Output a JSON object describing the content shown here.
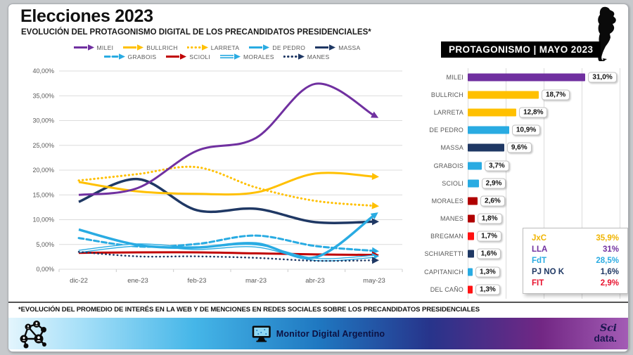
{
  "header": {
    "title": "Elecciones 2023",
    "subtitle": "EVOLUCIÓN DEL PROTAGONISMO DIGITAL DE LOS PRECANDIDATOS PRESIDENCIALES*"
  },
  "colors": {
    "purple": "#7030a0",
    "gold": "#ffc000",
    "lightblue": "#29abe2",
    "navy": "#1f3864",
    "dark_red": "#b00000",
    "red": "#c00000",
    "bright_red": "#ff1212",
    "crimson": "#e8112d",
    "grid": "#dcdcdc",
    "axis_text": "#595959"
  },
  "chart_data": [
    {
      "type": "line",
      "title": "",
      "x": [
        "dic-22",
        "ene-23",
        "feb-23",
        "mar-23",
        "abr-23",
        "may-23"
      ],
      "ylim": [
        0,
        40
      ],
      "ytick_step": 5,
      "ytick_labels": [
        "0,00%",
        "5,00%",
        "10,00%",
        "15,00%",
        "20,00%",
        "25,00%",
        "30,00%",
        "35,00%",
        "40,00%"
      ],
      "grid": true,
      "legend_position": "top",
      "series": [
        {
          "name": "MILEI",
          "color": "#7030a0",
          "style": "solid",
          "width": 3,
          "values": [
            15.0,
            16.4,
            23.9,
            26.5,
            37.4,
            31.0
          ]
        },
        {
          "name": "BULLRICH",
          "color": "#ffc000",
          "style": "solid",
          "width": 3,
          "values": [
            17.6,
            15.7,
            15.2,
            15.5,
            19.3,
            18.7
          ]
        },
        {
          "name": "LARRETA",
          "color": "#ffc000",
          "style": "dotted",
          "width": 3,
          "values": [
            17.9,
            19.2,
            20.6,
            16.5,
            13.8,
            12.8
          ]
        },
        {
          "name": "DE PEDRO",
          "color": "#29abe2",
          "style": "solid",
          "width": 3.5,
          "values": [
            8.0,
            4.9,
            4.4,
            5.2,
            2.4,
            10.9
          ]
        },
        {
          "name": "MASSA",
          "color": "#1f3864",
          "style": "solid",
          "width": 3.5,
          "values": [
            13.6,
            18.2,
            11.9,
            12.2,
            9.5,
            9.6
          ]
        },
        {
          "name": "GRABOIS",
          "color": "#29abe2",
          "style": "dashed",
          "width": 3,
          "values": [
            6.3,
            4.6,
            5.1,
            6.8,
            4.7,
            3.7
          ]
        },
        {
          "name": "SCIOLI",
          "color": "#c00000",
          "style": "solid",
          "width": 3,
          "values": [
            3.3,
            3.4,
            3.4,
            3.2,
            3.0,
            2.9
          ]
        },
        {
          "name": "MORALES",
          "color": "#29abe2",
          "style": "double",
          "width": 4,
          "values": [
            3.6,
            4.9,
            4.2,
            4.7,
            2.0,
            2.6
          ]
        },
        {
          "name": "MANES",
          "color": "#1f3864",
          "style": "dotted",
          "width": 2.5,
          "values": [
            3.5,
            2.6,
            2.6,
            2.3,
            1.7,
            1.8
          ]
        }
      ]
    },
    {
      "type": "bar",
      "title": "PROTAGONISMO | MAYO 2023",
      "xlim": [
        0,
        40
      ],
      "gridline_step": 10,
      "items": [
        {
          "label": "MILEI",
          "value": 31.0,
          "value_label": "31,0%",
          "color": "#7030a0"
        },
        {
          "label": "BULLRICH",
          "value": 18.7,
          "value_label": "18,7%",
          "color": "#ffc000"
        },
        {
          "label": "LARRETA",
          "value": 12.8,
          "value_label": "12,8%",
          "color": "#ffc000"
        },
        {
          "label": "DE PEDRO",
          "value": 10.9,
          "value_label": "10,9%",
          "color": "#29abe2"
        },
        {
          "label": "MASSA",
          "value": 9.6,
          "value_label": "9,6%",
          "color": "#1f3864"
        },
        {
          "label": "GRABOIS",
          "value": 3.7,
          "value_label": "3,7%",
          "color": "#29abe2"
        },
        {
          "label": "SCIOLI",
          "value": 2.9,
          "value_label": "2,9%",
          "color": "#29abe2"
        },
        {
          "label": "MORALES",
          "value": 2.6,
          "value_label": "2,6%",
          "color": "#b00000"
        },
        {
          "label": "MANES",
          "value": 1.8,
          "value_label": "1,8%",
          "color": "#b00000"
        },
        {
          "label": "BREGMAN",
          "value": 1.7,
          "value_label": "1,7%",
          "color": "#ff1212"
        },
        {
          "label": "SCHIARETTI",
          "value": 1.6,
          "value_label": "1,6%",
          "color": "#1f3864"
        },
        {
          "label": "CAPITANICH",
          "value": 1.3,
          "value_label": "1,3%",
          "color": "#29abe2"
        },
        {
          "label": "DEL CAÑO",
          "value": 1.3,
          "value_label": "1,3%",
          "color": "#ff1212"
        }
      ]
    }
  ],
  "panel": {
    "title": "PROTAGONISMO | MAYO 2023",
    "summary": [
      {
        "label": "JxC",
        "value": "35,9%",
        "color": "#f0b400"
      },
      {
        "label": "LLA",
        "value": "31%",
        "color": "#7030a0"
      },
      {
        "label": "FdT",
        "value": "28,5%",
        "color": "#29abe2"
      },
      {
        "label": "PJ NO K",
        "value": "1,6%",
        "color": "#1f3864"
      },
      {
        "label": "FIT",
        "value": "2,9%",
        "color": "#e8112d"
      }
    ]
  },
  "footer": {
    "note": "*EVOLUCIÓN DEL PROMEDIO DE INTERÉS EN LA WEB Y DE MENCIONES EN REDES SOCIALES SOBRE LOS PRECANDIDATOS PRESIDENCIALES"
  },
  "bottom_bar": {
    "brand": "Monitor Digital Argentino",
    "logo_line1": "Sci",
    "logo_line2": "data."
  }
}
